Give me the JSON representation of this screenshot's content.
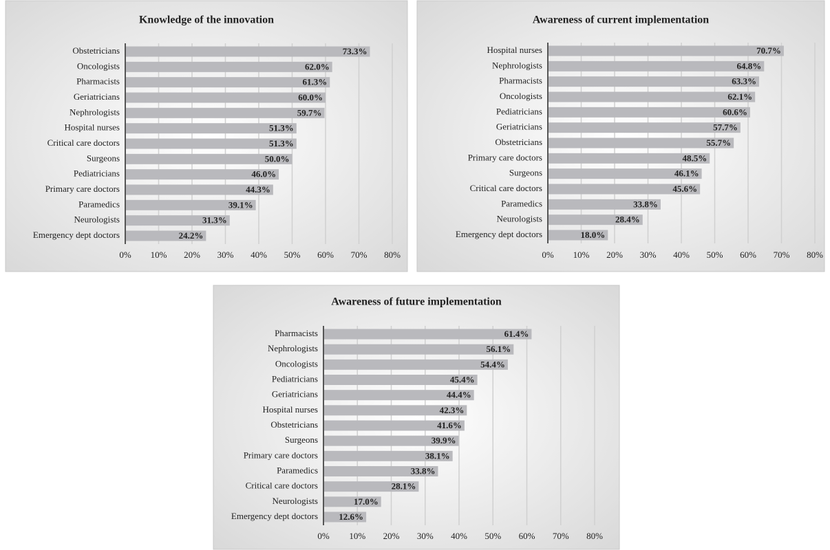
{
  "chart_data": [
    {
      "type": "bar",
      "orientation": "horizontal",
      "title": "Knowledge of the innovation",
      "categories": [
        "Obstetricians",
        "Oncologists",
        "Pharmacists",
        "Geriatricians",
        "Nephrologists",
        "Hospital nurses",
        "Critical care doctors",
        "Surgeons",
        "Pediatricians",
        "Primary care doctors",
        "Paramedics",
        "Neurologists",
        "Emergency dept doctors"
      ],
      "values": [
        73.3,
        62.0,
        61.3,
        60.0,
        59.7,
        51.3,
        51.3,
        50.0,
        46.0,
        44.3,
        39.1,
        31.3,
        24.2
      ],
      "value_labels": [
        "73.3%",
        "62.0%",
        "61.3%",
        "60.0%",
        "59.7%",
        "51.3%",
        "51.3%",
        "50.0%",
        "46.0%",
        "44.3%",
        "39.1%",
        "31.3%",
        "24.2%"
      ],
      "color": "#b9b9bd",
      "grid": true,
      "xlim": [
        0,
        80
      ],
      "xticks": [
        {
          "value": 0,
          "label": "0%"
        },
        {
          "value": 10,
          "label": "10%"
        },
        {
          "value": 20,
          "label": "20%"
        },
        {
          "value": 30,
          "label": "30%"
        },
        {
          "value": 40,
          "label": "40%"
        },
        {
          "value": 50,
          "label": "50%"
        },
        {
          "value": 60,
          "label": "60%"
        },
        {
          "value": 70,
          "label": "70%"
        },
        {
          "value": 80,
          "label": "80%"
        }
      ]
    },
    {
      "type": "bar",
      "orientation": "horizontal",
      "title": "Awareness of current implementation",
      "categories": [
        "Hospital nurses",
        "Nephrologists",
        "Pharmacists",
        "Oncologists",
        "Pediatricians",
        "Geriatricians",
        "Obstetricians",
        "Primary care doctors",
        "Surgeons",
        "Critical care doctors",
        "Paramedics",
        "Neurologists",
        "Emergency dept doctors"
      ],
      "values": [
        70.7,
        64.8,
        63.3,
        62.1,
        60.6,
        57.7,
        55.7,
        48.5,
        46.1,
        45.6,
        33.8,
        28.4,
        18.0
      ],
      "value_labels": [
        "70.7%",
        "64.8%",
        "63.3%",
        "62.1%",
        "60.6%",
        "57.7%",
        "55.7%",
        "48.5%",
        "46.1%",
        "45.6%",
        "33.8%",
        "28.4%",
        "18.0%"
      ],
      "color": "#b9b9bd",
      "grid": true,
      "xlim": [
        0,
        80
      ],
      "xticks": [
        {
          "value": 0,
          "label": "0%"
        },
        {
          "value": 10,
          "label": "10%"
        },
        {
          "value": 20,
          "label": "20%"
        },
        {
          "value": 30,
          "label": "30%"
        },
        {
          "value": 40,
          "label": "40%"
        },
        {
          "value": 50,
          "label": "50%"
        },
        {
          "value": 60,
          "label": "60%"
        },
        {
          "value": 70,
          "label": "70%"
        },
        {
          "value": 80,
          "label": "80%"
        }
      ]
    },
    {
      "type": "bar",
      "orientation": "horizontal",
      "title": "Awareness of future implementation",
      "categories": [
        "Pharmacists",
        "Nephrologists",
        "Oncologists",
        "Pediatricians",
        "Geriatricians",
        "Hospital nurses",
        "Obstetricians",
        "Surgeons",
        "Primary care doctors",
        "Paramedics",
        "Critical care doctors",
        "Neurologists",
        "Emergency dept doctors"
      ],
      "values": [
        61.4,
        56.1,
        54.4,
        45.4,
        44.4,
        42.3,
        41.6,
        39.9,
        38.1,
        33.8,
        28.1,
        17.0,
        12.6
      ],
      "value_labels": [
        "61.4%",
        "56.1%",
        "54.4%",
        "45.4%",
        "44.4%",
        "42.3%",
        "41.6%",
        "39.9%",
        "38.1%",
        "33.8%",
        "28.1%",
        "17.0%",
        "12.6%"
      ],
      "color": "#b9b9bd",
      "grid": true,
      "xlim": [
        0,
        80
      ],
      "xticks": [
        {
          "value": 0,
          "label": "0%"
        },
        {
          "value": 10,
          "label": "10%"
        },
        {
          "value": 20,
          "label": "20%"
        },
        {
          "value": 30,
          "label": "30%"
        },
        {
          "value": 40,
          "label": "40%"
        },
        {
          "value": 50,
          "label": "50%"
        },
        {
          "value": 60,
          "label": "60%"
        },
        {
          "value": 70,
          "label": "70%"
        },
        {
          "value": 80,
          "label": "80%"
        }
      ]
    }
  ]
}
